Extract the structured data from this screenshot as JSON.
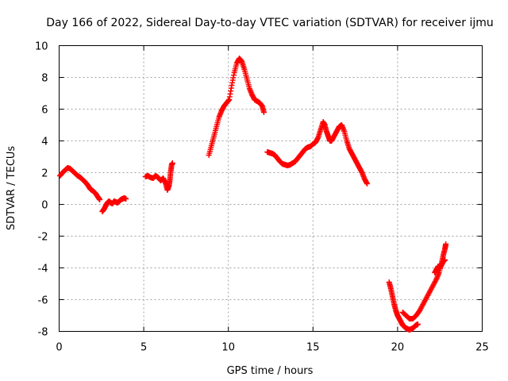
{
  "chart_data": {
    "type": "scatter",
    "title": "Day 166 of 2022, Sidereal Day-to-day VTEC variation (SDTVAR) for receiver ijmu",
    "xlabel": "GPS time / hours",
    "ylabel": "SDTVAR / TECUs",
    "xlim": [
      0,
      25
    ],
    "ylim": [
      -8,
      10
    ],
    "xticks": [
      0,
      5,
      10,
      15,
      20,
      25
    ],
    "yticks": [
      -8,
      -6,
      -4,
      -2,
      0,
      2,
      4,
      6,
      8,
      10
    ],
    "grid": true,
    "marker": "plus",
    "marker_color": "#ff0000",
    "series": [
      {
        "segments": [
          {
            "x": [
              0.05,
              0.2,
              0.35,
              0.5,
              0.65,
              0.8,
              0.95,
              1.1,
              1.25,
              1.4,
              1.55,
              1.7,
              1.85,
              2.0,
              2.15,
              2.3,
              2.4
            ],
            "y": [
              1.8,
              2.0,
              2.15,
              2.3,
              2.25,
              2.1,
              1.95,
              1.8,
              1.7,
              1.55,
              1.4,
              1.2,
              0.95,
              0.85,
              0.7,
              0.45,
              0.3
            ]
          },
          {
            "x": [
              2.55,
              2.65,
              2.75,
              2.85,
              2.95,
              3.05,
              3.15,
              3.25,
              3.35,
              3.45,
              3.55,
              3.65,
              3.75,
              3.85,
              3.95
            ],
            "y": [
              -0.45,
              -0.3,
              -0.1,
              0.1,
              0.2,
              0.1,
              0.05,
              0.2,
              0.15,
              0.1,
              0.2,
              0.3,
              0.35,
              0.4,
              0.35
            ]
          },
          {
            "x": [
              5.1,
              5.25,
              5.4,
              5.55,
              5.7,
              5.85,
              6.0,
              6.15,
              6.3,
              6.4,
              6.5,
              6.55,
              6.6,
              6.65,
              6.7
            ],
            "y": [
              1.75,
              1.8,
              1.7,
              1.65,
              1.8,
              1.7,
              1.5,
              1.65,
              1.3,
              0.9,
              1.2,
              1.6,
              2.1,
              2.5,
              2.6
            ]
          },
          {
            "x": [
              8.85,
              9.0,
              9.15,
              9.3,
              9.45,
              9.6,
              9.75,
              9.9,
              10.05,
              10.2,
              10.35,
              10.5,
              10.65,
              10.8,
              10.95,
              11.1,
              11.25,
              11.4,
              11.55,
              11.7,
              11.85,
              12.0,
              12.1
            ],
            "y": [
              3.1,
              3.7,
              4.3,
              4.9,
              5.5,
              5.9,
              6.2,
              6.4,
              6.6,
              7.5,
              8.3,
              8.9,
              9.2,
              9.0,
              8.5,
              7.9,
              7.3,
              6.9,
              6.6,
              6.5,
              6.4,
              6.2,
              5.8
            ]
          },
          {
            "x": [
              12.3,
              12.45,
              12.6,
              12.75,
              12.9,
              13.05,
              13.2,
              13.35,
              13.5,
              13.65,
              13.8,
              13.95,
              14.1,
              14.25,
              14.4,
              14.55,
              14.7,
              14.85,
              15.0,
              15.15,
              15.3,
              15.45,
              15.6,
              15.7,
              15.8,
              15.9,
              16.0,
              16.1,
              16.25,
              16.4,
              16.55,
              16.7,
              16.85,
              17.0,
              17.15,
              17.3,
              17.45,
              17.6,
              17.75,
              17.9,
              18.05,
              18.2
            ],
            "y": [
              3.3,
              3.25,
              3.2,
              3.1,
              2.9,
              2.7,
              2.55,
              2.5,
              2.45,
              2.5,
              2.6,
              2.7,
              2.9,
              3.1,
              3.3,
              3.5,
              3.6,
              3.65,
              3.8,
              3.9,
              4.2,
              4.7,
              5.2,
              5.0,
              4.6,
              4.3,
              4.0,
              4.0,
              4.3,
              4.6,
              4.9,
              5.0,
              4.6,
              4.0,
              3.5,
              3.2,
              2.9,
              2.6,
              2.3,
              2.0,
              1.6,
              1.3
            ]
          },
          {
            "x": [
              19.5,
              19.6,
              19.7,
              19.8,
              19.9,
              20.0,
              20.1,
              20.2,
              20.3,
              20.4,
              20.5,
              20.6,
              20.7,
              20.8,
              20.9,
              21.0,
              21.1,
              21.2
            ],
            "y": [
              -4.9,
              -5.3,
              -5.8,
              -6.3,
              -6.7,
              -7.0,
              -7.2,
              -7.4,
              -7.6,
              -7.7,
              -7.8,
              -7.85,
              -7.9,
              -7.85,
              -7.8,
              -7.7,
              -7.6,
              -7.55
            ]
          },
          {
            "x": [
              20.3,
              20.5,
              20.7,
              20.9,
              21.1,
              21.3,
              21.5,
              21.7,
              21.9,
              22.1,
              22.3,
              22.45,
              22.6,
              22.7,
              22.8,
              22.85
            ],
            "y": [
              -6.8,
              -7.0,
              -7.2,
              -7.2,
              -7.0,
              -6.7,
              -6.3,
              -5.9,
              -5.5,
              -5.1,
              -4.7,
              -4.3,
              -3.7,
              -3.2,
              -2.8,
              -2.5
            ]
          },
          {
            "x": [
              22.2,
              22.3,
              22.4,
              22.5,
              22.6,
              22.7,
              22.8
            ],
            "y": [
              -4.3,
              -4.1,
              -3.9,
              -4.0,
              -3.8,
              -3.6,
              -3.5
            ]
          }
        ]
      }
    ]
  }
}
